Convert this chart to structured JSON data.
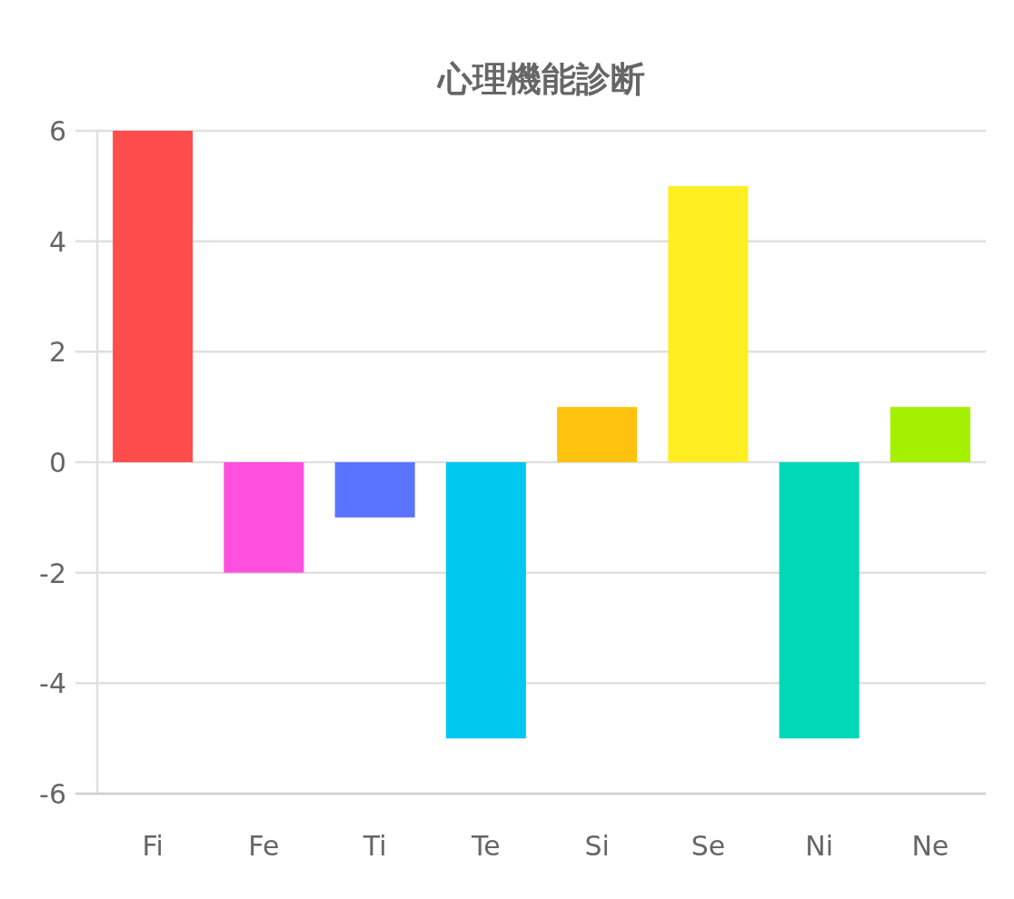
{
  "chart_data": {
    "type": "bar",
    "title": "心理機能診断",
    "categories": [
      "Fi",
      "Fe",
      "Ti",
      "Te",
      "Si",
      "Se",
      "Ni",
      "Ne"
    ],
    "values": [
      6,
      -2,
      -1,
      -5,
      1,
      5,
      -5,
      1
    ],
    "colors": [
      "#ff4d4d",
      "#ff4fde",
      "#5b74ff",
      "#00c9f0",
      "#ffc20e",
      "#ffee22",
      "#00d8b8",
      "#a5f000"
    ],
    "ylim": [
      -6,
      6
    ],
    "yticks": [
      -6,
      -4,
      -2,
      0,
      2,
      4,
      6
    ],
    "grid": "y"
  }
}
